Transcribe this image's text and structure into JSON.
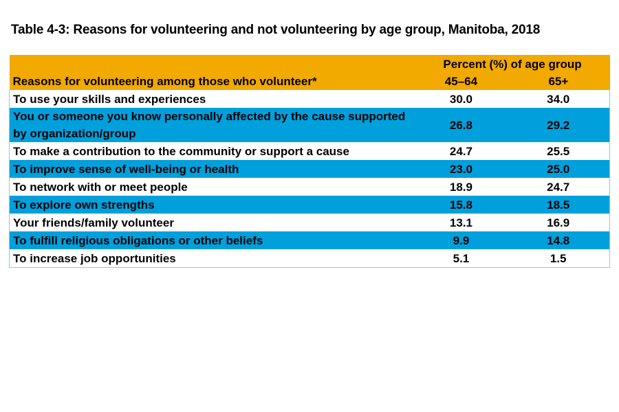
{
  "title": "Table 4-3: Reasons for volunteering and not volunteering by age group, Manitoba, 2018",
  "colors": {
    "header": "#F2A900",
    "alt_row": "#00A0DC",
    "border": "#8cc8ea"
  },
  "header": {
    "group_label": "Percent (%) of age group",
    "row_label": "Reasons for volunteering among those who volunteer*",
    "columns": [
      "45–64",
      "65+"
    ]
  },
  "rows": [
    {
      "label": "To use your skills and experiences",
      "values": [
        "30.0",
        "34.0"
      ]
    },
    {
      "label": "You or someone you know personally affected by the cause supported by organization/group",
      "values": [
        "26.8",
        "29.2"
      ]
    },
    {
      "label": "To make a contribution to the community or support a cause",
      "values": [
        "24.7",
        "25.5"
      ]
    },
    {
      "label": "To improve sense of well-being or health",
      "values": [
        "23.0",
        "25.0"
      ]
    },
    {
      "label": "To network with or meet people",
      "values": [
        "18.9",
        "24.7"
      ]
    },
    {
      "label": "To explore own strengths",
      "values": [
        "15.8",
        "18.5"
      ]
    },
    {
      "label": "Your friends/family volunteer",
      "values": [
        "13.1",
        "16.9"
      ]
    },
    {
      "label": "To fulfill religious obligations or other beliefs",
      "values": [
        "9.9",
        "14.8"
      ]
    },
    {
      "label": "To increase job opportunities",
      "values": [
        "5.1",
        "1.5"
      ]
    }
  ]
}
